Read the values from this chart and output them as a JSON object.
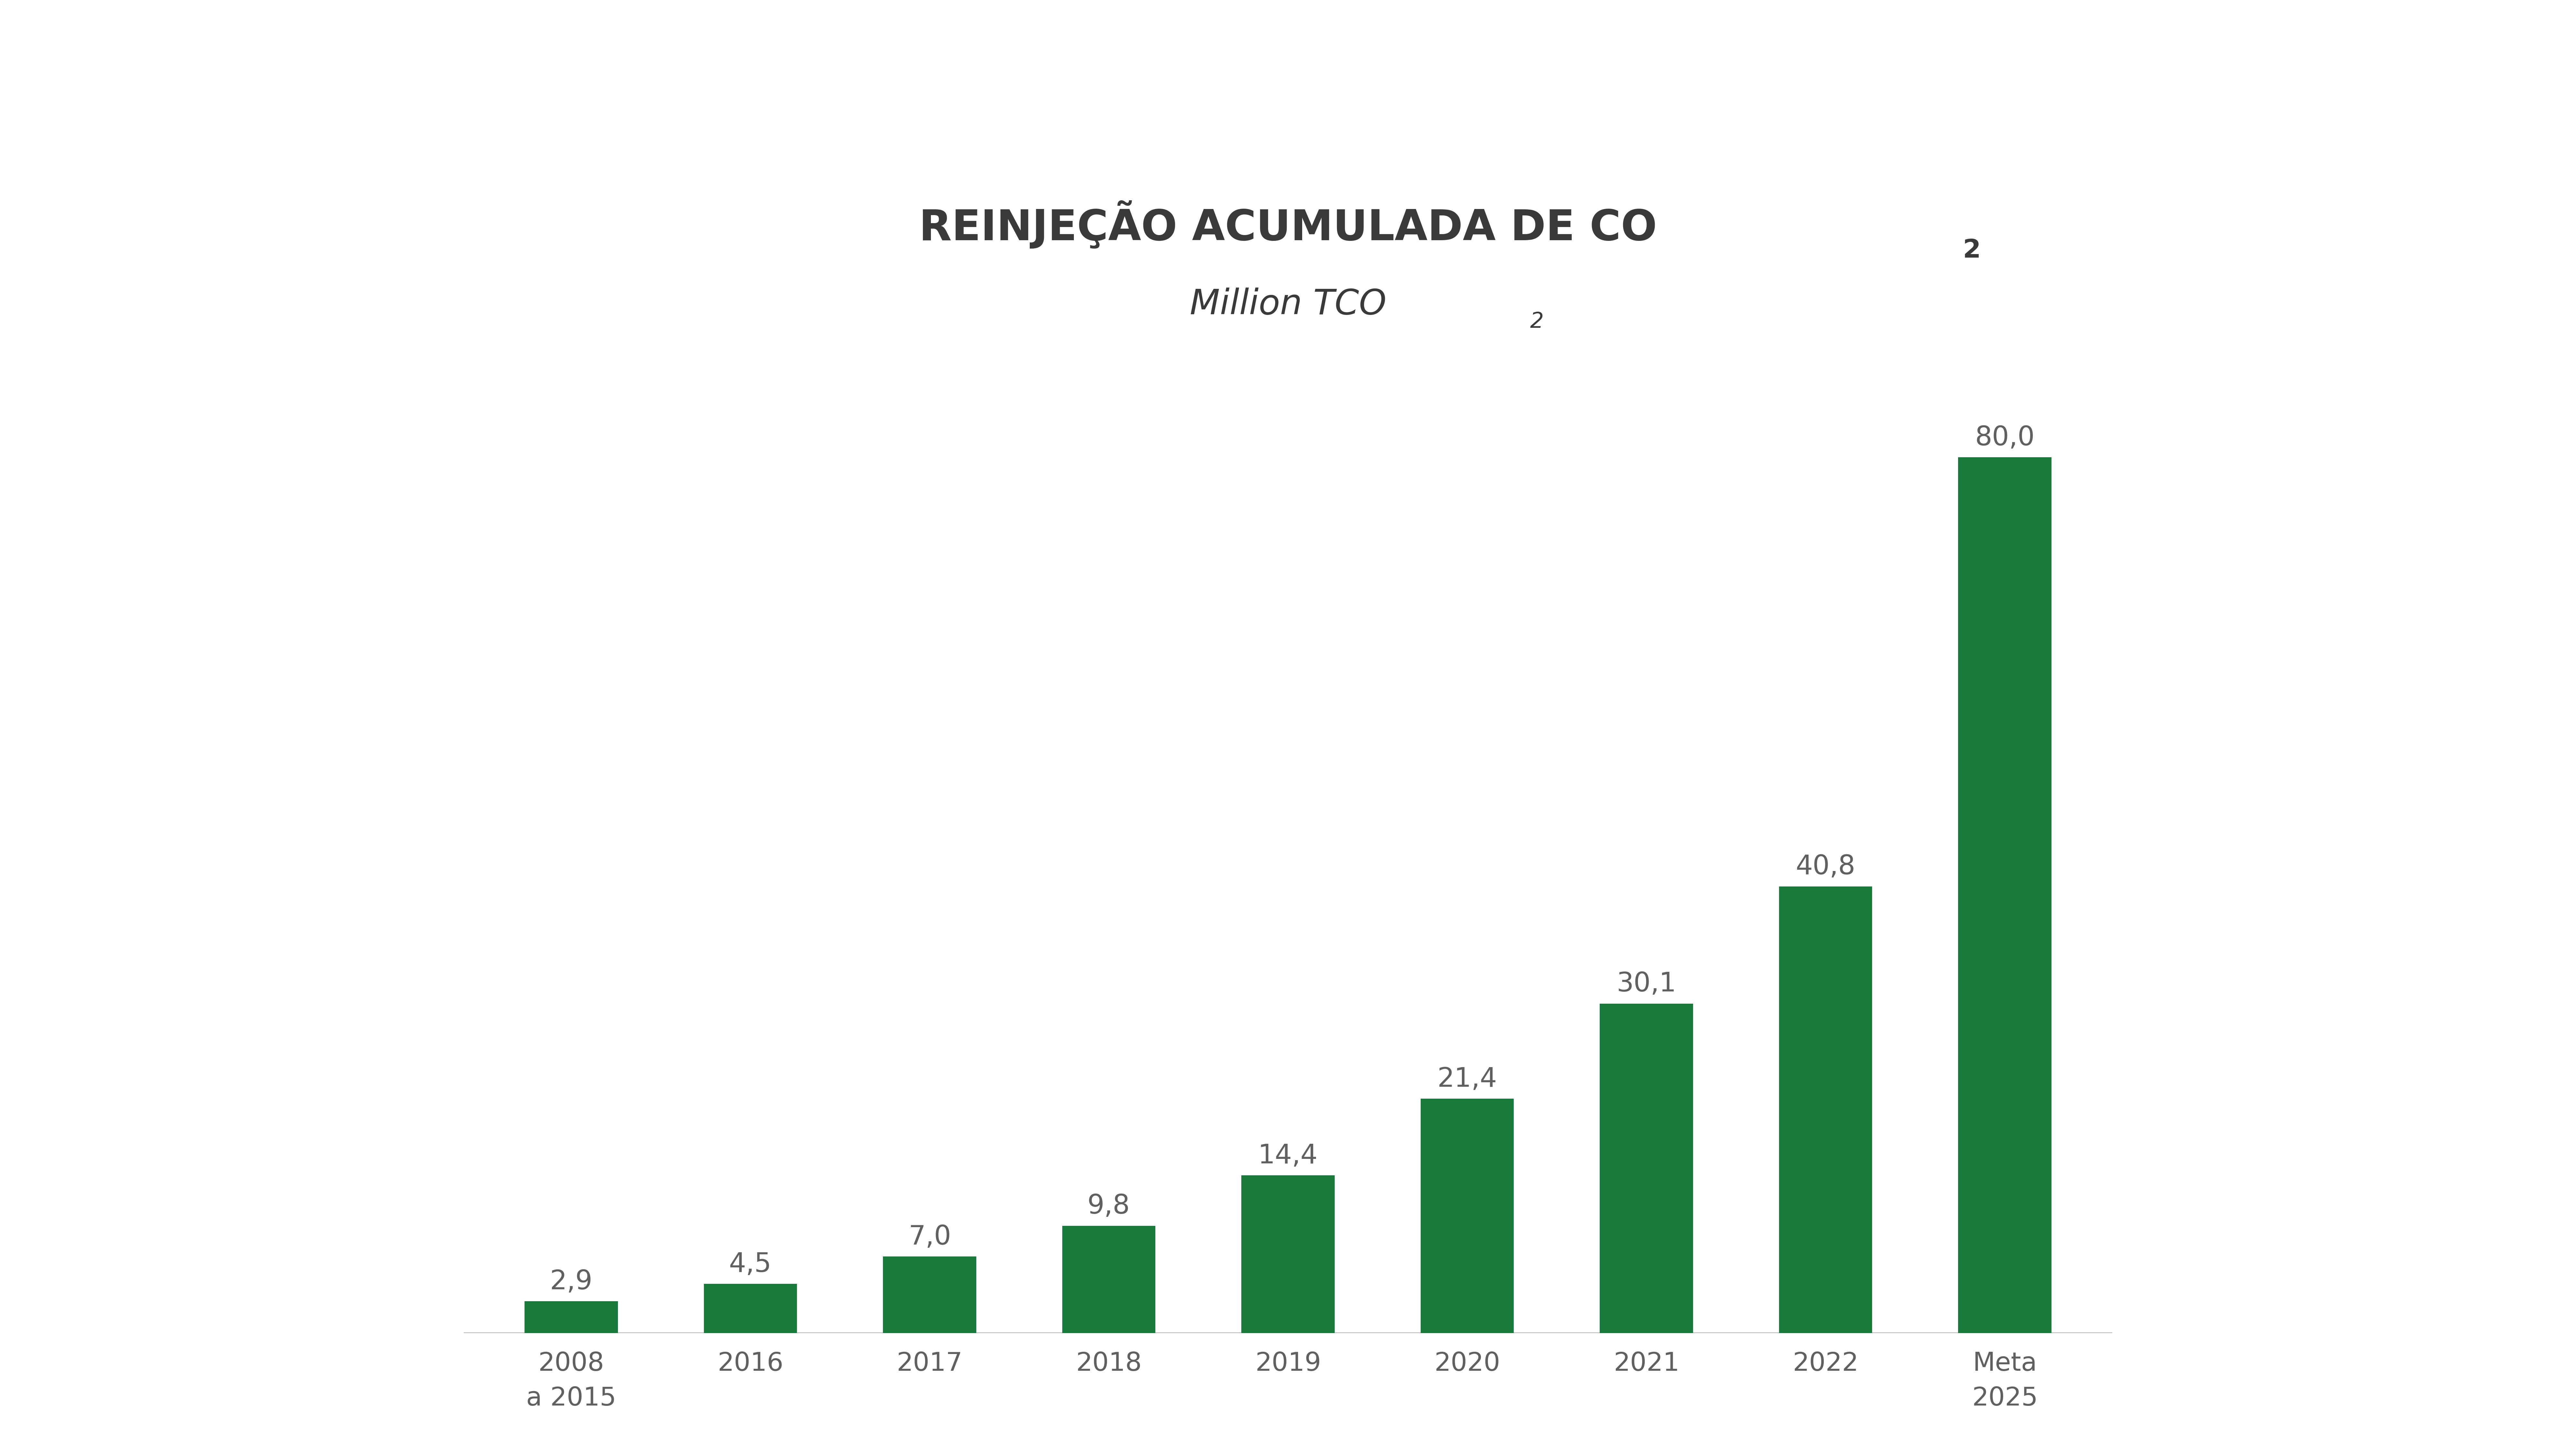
{
  "categories": [
    "2008\na 2015",
    "2016",
    "2017",
    "2018",
    "2019",
    "2020",
    "2021",
    "2022",
    "Meta\n2025"
  ],
  "values": [
    2.9,
    4.5,
    7.0,
    9.8,
    14.4,
    21.4,
    30.1,
    40.8,
    80.0
  ],
  "labels": [
    "2,9",
    "4,5",
    "7,0",
    "9,8",
    "14,4",
    "21,4",
    "30,1",
    "40,8",
    "80,0"
  ],
  "bar_color": "#1a7a3c",
  "background_color": "#ffffff",
  "label_color": "#606060",
  "title_color": "#3a3a3a",
  "title_main": "REINJEÇÃO ACUMULADA DE CO",
  "title_sub": "Million TCO",
  "ylim_max": 90,
  "bar_width": 0.52,
  "title_fontsize": 95,
  "subtitle_fontsize": 78,
  "value_label_fontsize": 60,
  "xtick_fontsize": 58
}
